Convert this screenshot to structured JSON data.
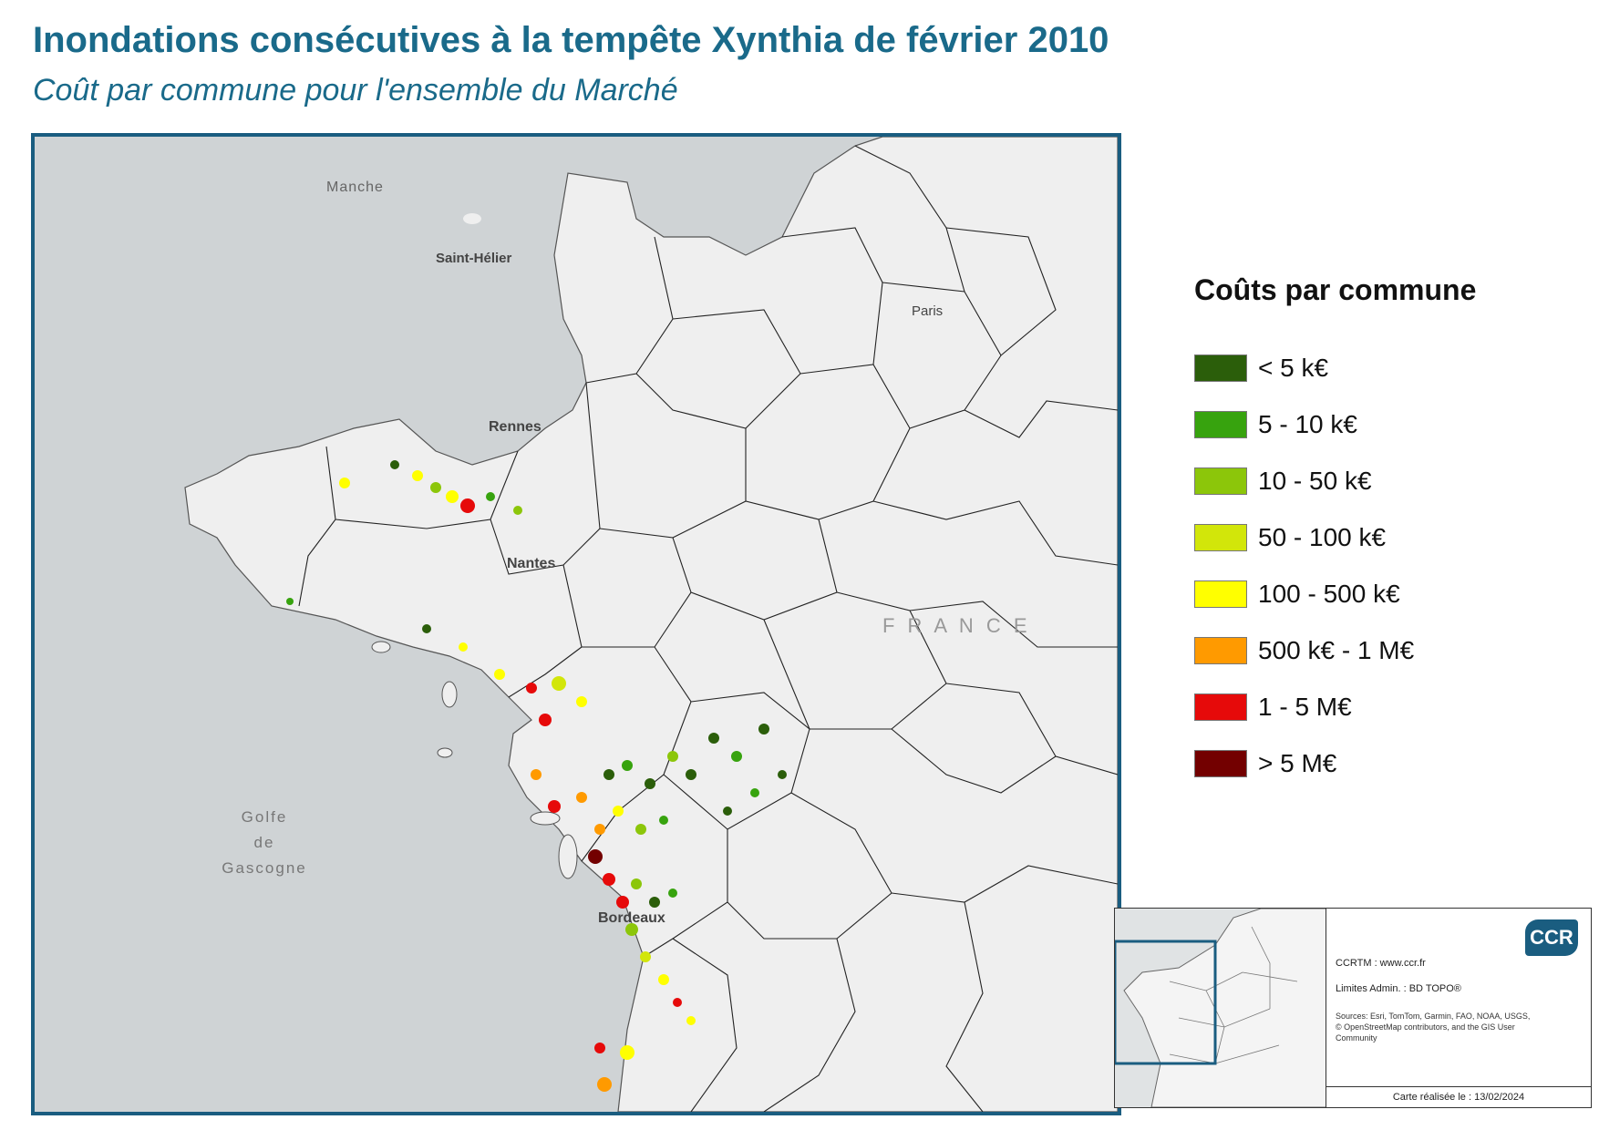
{
  "title": "Inondations consécutives à la tempête Xynthia de février 2010",
  "subtitle": "Coût par commune pour l'ensemble du Marché",
  "map": {
    "places": {
      "manche": "Manche",
      "saint_helier": "Saint-Hélier",
      "rennes": "Rennes",
      "nantes": "Nantes",
      "bordeaux": "Bordeaux",
      "paris": "Paris",
      "france": "F R A N C E",
      "golfe_line1": "Golfe",
      "golfe_line2": "de",
      "golfe_line3": "Gascogne"
    },
    "colors": {
      "sea": "#cfd3d5",
      "land": "#efefef",
      "border": "#333333"
    }
  },
  "legend": {
    "title": "Coûts par commune",
    "items": [
      {
        "label": "< 5 k€",
        "color": "#2b5e0a"
      },
      {
        "label": "5 - 10 k€",
        "color": "#37a30e"
      },
      {
        "label": "10 - 50 k€",
        "color": "#8cc60a"
      },
      {
        "label": "50 - 100 k€",
        "color": "#d2e60a"
      },
      {
        "label": "100 - 500 k€",
        "color": "#ffff00"
      },
      {
        "label": "500 k€ - 1 M€",
        "color": "#ff9a00"
      },
      {
        "label": "1 - 5 M€",
        "color": "#e60a0a"
      },
      {
        "label": "> 5 M€",
        "color": "#730000"
      }
    ]
  },
  "credits": {
    "logo": "CCR",
    "site": "CCRTM : www.ccr.fr",
    "limits": "Limites Admin. : BD TOPO®",
    "sources": "Sources: Esri, TomTom, Garmin, FAO, NOAA, USGS, © OpenStreetMap contributors, and the GIS User Community",
    "date": "Carte réalisée le : 13/02/2024"
  }
}
